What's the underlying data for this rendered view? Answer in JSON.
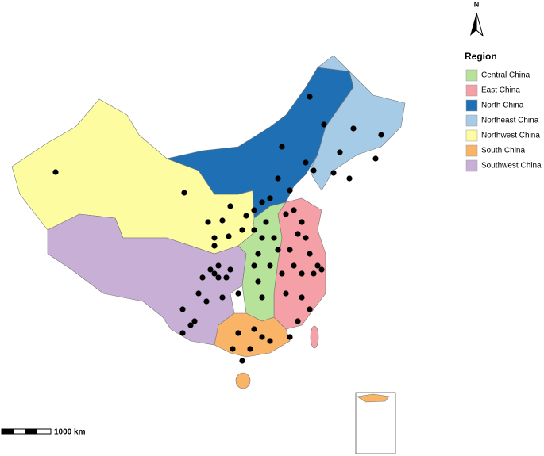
{
  "north_arrow": {
    "label": "N"
  },
  "legend": {
    "title": "Region",
    "items": [
      {
        "label": "Central China",
        "color": "#b7e29a"
      },
      {
        "label": "East China",
        "color": "#f4a0a6"
      },
      {
        "label": "North China",
        "color": "#1f6fb5"
      },
      {
        "label": "Northeast China",
        "color": "#a6cbe6"
      },
      {
        "label": "Northwest China",
        "color": "#fdfca0"
      },
      {
        "label": "South China",
        "color": "#f9b467"
      },
      {
        "label": "Southwest China",
        "color": "#c7afd6"
      }
    ]
  },
  "scale_bar": {
    "label": "1000 km"
  }
}
